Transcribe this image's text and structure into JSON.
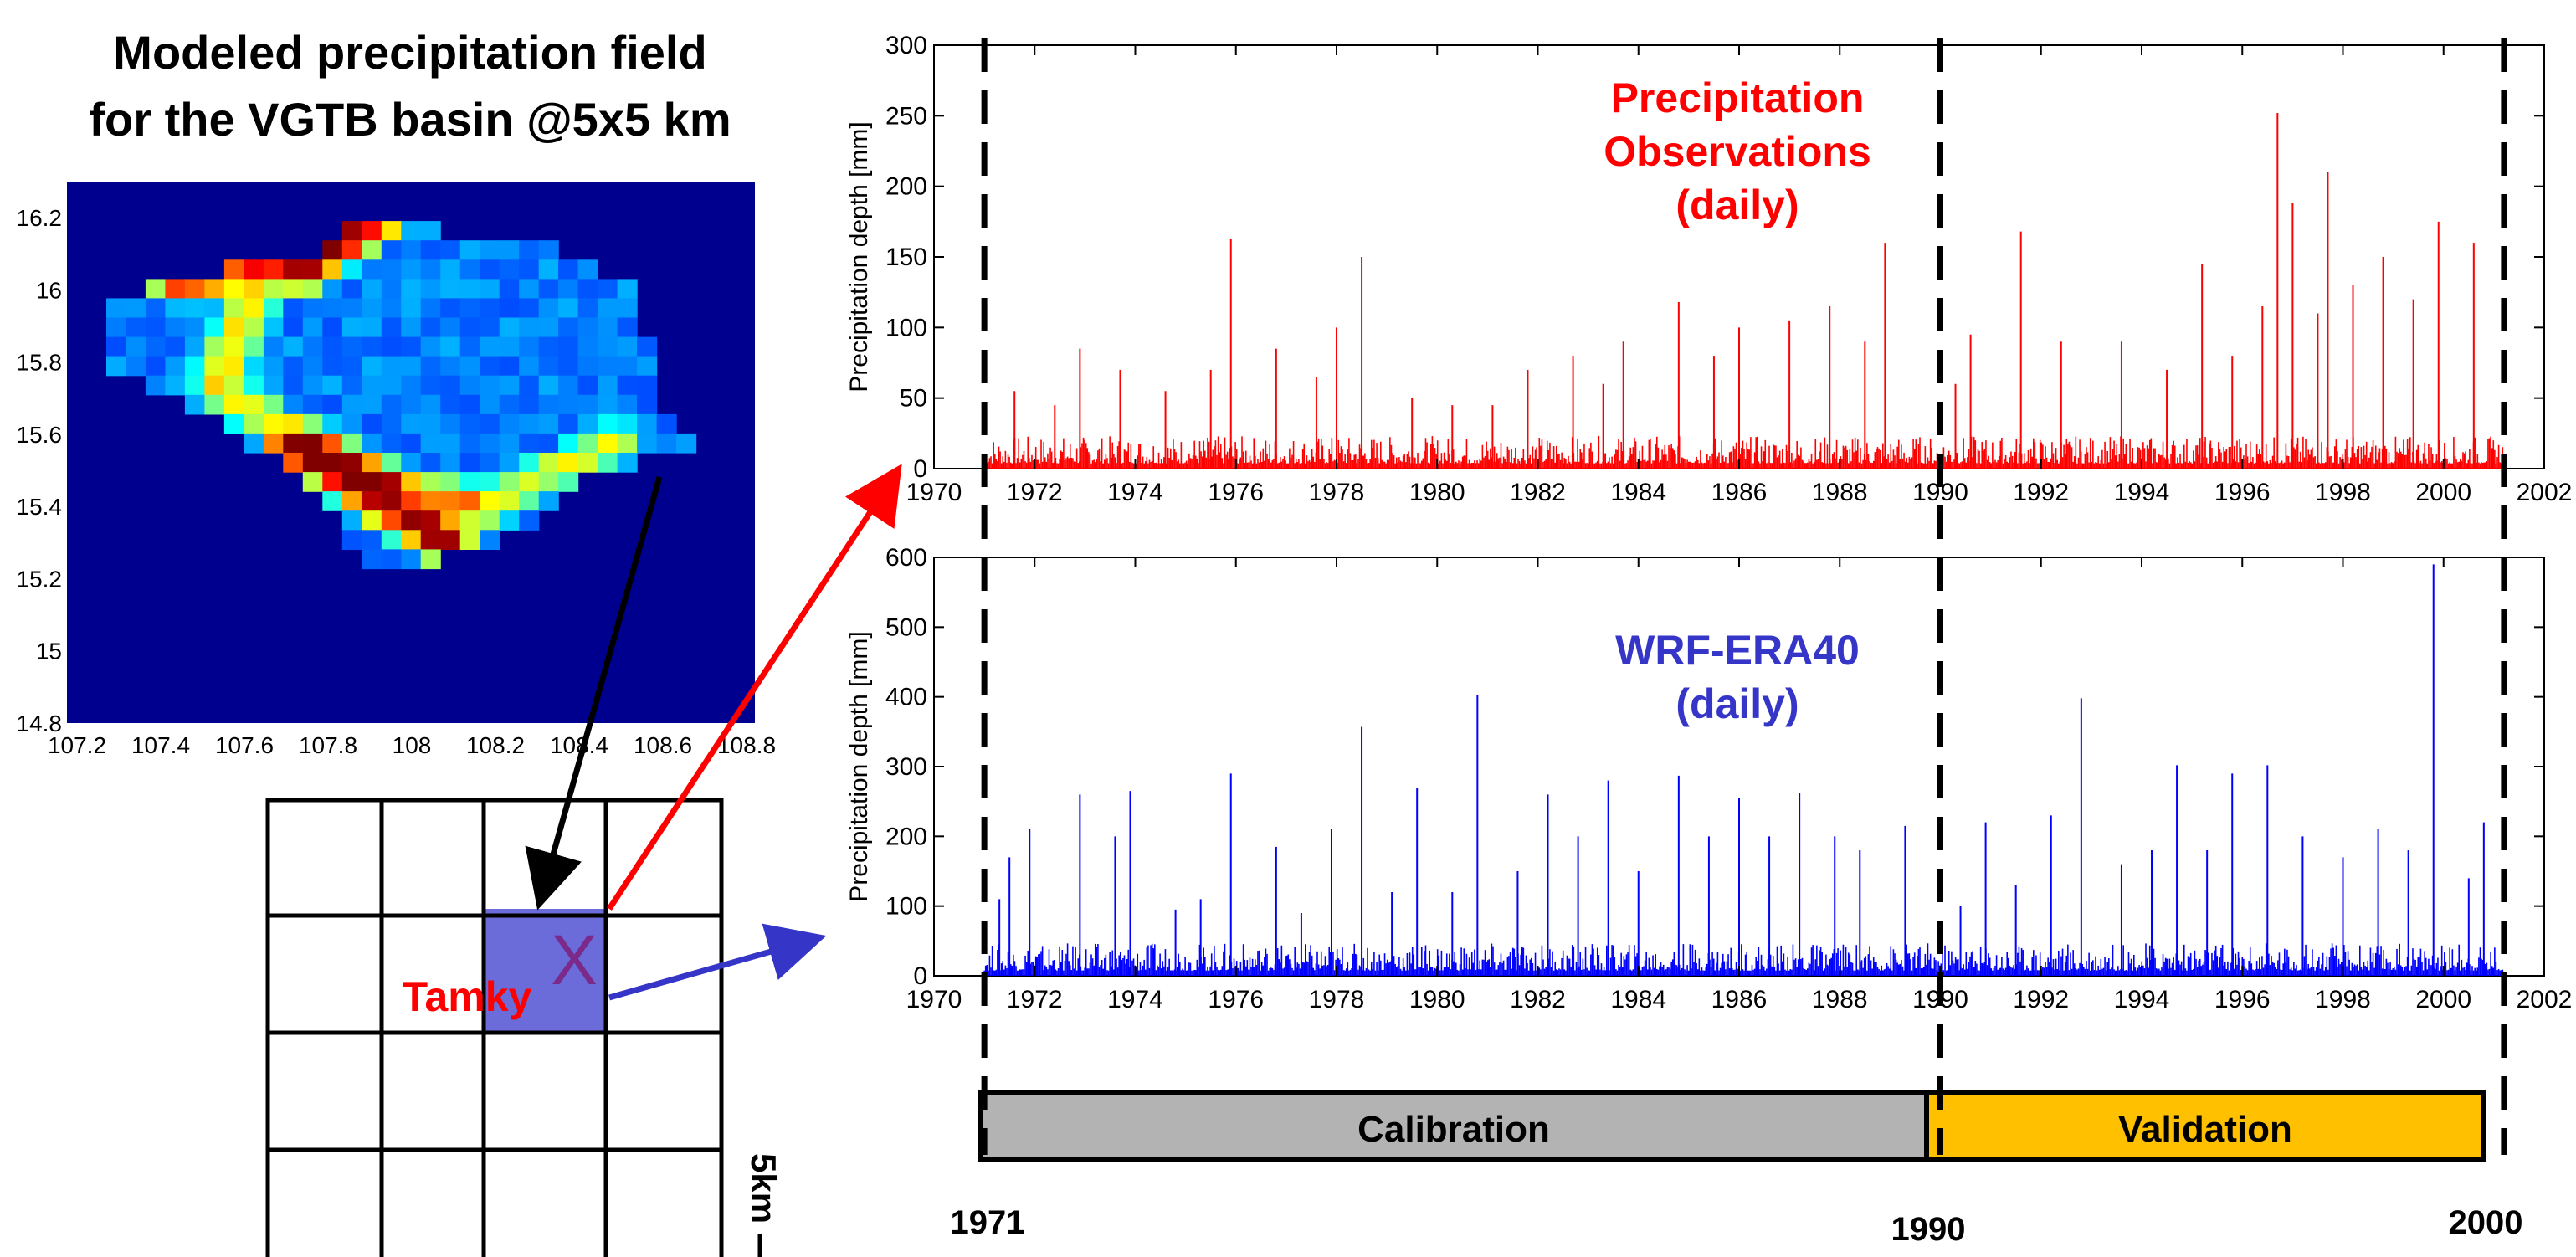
{
  "map": {
    "title_line1": "Modeled precipitation field",
    "title_line2": "for the  VGTB basin @5x5 km",
    "x_ticks": [
      "107.2",
      "107.4",
      "107.6",
      "107.8",
      "108",
      "108.2",
      "108.4",
      "108.6",
      "108.8"
    ],
    "y_ticks": [
      "16.2",
      "16",
      "15.8",
      "15.6",
      "15.4",
      "15.2",
      "15",
      "14.8"
    ],
    "colors": {
      "background": "#00008F",
      "low": "#0000FF",
      "mid": "#00FFFF",
      "high": "#FFFF00",
      "peak": "#FF0000",
      "max": "#800000"
    }
  },
  "grid": {
    "station_label": "Tamky",
    "marker": "X",
    "scale_label": "5km",
    "highlight_color": "#6B6BD9"
  },
  "chart_data": [
    {
      "type": "bar",
      "title": "Precipitation Observations (daily)",
      "title_lines": [
        "Precipitation",
        "Observations",
        "(daily)"
      ],
      "ylabel": "Precipitation depth [mm]",
      "xlim": [
        1970,
        2002
      ],
      "ylim": [
        0,
        300
      ],
      "x_ticks": [
        "1970",
        "1972",
        "1974",
        "1976",
        "1978",
        "1980",
        "1982",
        "1984",
        "1986",
        "1988",
        "1990",
        "1992",
        "1994",
        "1996",
        "1998",
        "2000",
        "2002"
      ],
      "y_ticks": [
        "0",
        "50",
        "100",
        "150",
        "200",
        "250",
        "300"
      ],
      "color": "#FF0000",
      "baseline": 15,
      "peaks": [
        {
          "x": 1971.6,
          "y": 55
        },
        {
          "x": 1972.4,
          "y": 45
        },
        {
          "x": 1972.9,
          "y": 85
        },
        {
          "x": 1973.7,
          "y": 70
        },
        {
          "x": 1974.6,
          "y": 55
        },
        {
          "x": 1975.5,
          "y": 70
        },
        {
          "x": 1975.9,
          "y": 163
        },
        {
          "x": 1976.8,
          "y": 85
        },
        {
          "x": 1977.6,
          "y": 65
        },
        {
          "x": 1978.0,
          "y": 100
        },
        {
          "x": 1978.5,
          "y": 150
        },
        {
          "x": 1979.5,
          "y": 50
        },
        {
          "x": 1980.3,
          "y": 45
        },
        {
          "x": 1981.1,
          "y": 45
        },
        {
          "x": 1981.8,
          "y": 70
        },
        {
          "x": 1982.7,
          "y": 80
        },
        {
          "x": 1983.3,
          "y": 60
        },
        {
          "x": 1983.7,
          "y": 90
        },
        {
          "x": 1984.8,
          "y": 118
        },
        {
          "x": 1985.5,
          "y": 80
        },
        {
          "x": 1986.0,
          "y": 100
        },
        {
          "x": 1987.0,
          "y": 105
        },
        {
          "x": 1987.8,
          "y": 115
        },
        {
          "x": 1988.5,
          "y": 90
        },
        {
          "x": 1988.9,
          "y": 160
        },
        {
          "x": 1990.3,
          "y": 60
        },
        {
          "x": 1990.6,
          "y": 95
        },
        {
          "x": 1991.6,
          "y": 168
        },
        {
          "x": 1992.4,
          "y": 90
        },
        {
          "x": 1993.6,
          "y": 90
        },
        {
          "x": 1994.5,
          "y": 70
        },
        {
          "x": 1995.2,
          "y": 145
        },
        {
          "x": 1995.8,
          "y": 80
        },
        {
          "x": 1996.4,
          "y": 115
        },
        {
          "x": 1996.7,
          "y": 252
        },
        {
          "x": 1997.0,
          "y": 188
        },
        {
          "x": 1997.5,
          "y": 110
        },
        {
          "x": 1997.7,
          "y": 210
        },
        {
          "x": 1998.2,
          "y": 130
        },
        {
          "x": 1998.8,
          "y": 150
        },
        {
          "x": 1999.4,
          "y": 120
        },
        {
          "x": 1999.9,
          "y": 175
        },
        {
          "x": 2000.6,
          "y": 160
        }
      ]
    },
    {
      "type": "bar",
      "title": "WRF-ERA40 (daily)",
      "title_lines": [
        "WRF-ERA40",
        "(daily)"
      ],
      "ylabel": "Precipitation depth [mm]",
      "xlim": [
        1970,
        2002
      ],
      "ylim": [
        0,
        600
      ],
      "x_ticks": [
        "1970",
        "1972",
        "1974",
        "1976",
        "1978",
        "1980",
        "1982",
        "1984",
        "1986",
        "1988",
        "1990",
        "1992",
        "1994",
        "1996",
        "1998",
        "2000",
        "2002"
      ],
      "y_ticks": [
        "0",
        "100",
        "200",
        "300",
        "400",
        "500",
        "600"
      ],
      "color": "#0000FF",
      "baseline": 30,
      "peaks": [
        {
          "x": 1971.3,
          "y": 110
        },
        {
          "x": 1971.5,
          "y": 170
        },
        {
          "x": 1971.9,
          "y": 210
        },
        {
          "x": 1972.9,
          "y": 260
        },
        {
          "x": 1973.6,
          "y": 200
        },
        {
          "x": 1973.9,
          "y": 265
        },
        {
          "x": 1974.8,
          "y": 95
        },
        {
          "x": 1975.3,
          "y": 110
        },
        {
          "x": 1975.9,
          "y": 290
        },
        {
          "x": 1976.8,
          "y": 185
        },
        {
          "x": 1977.3,
          "y": 90
        },
        {
          "x": 1977.9,
          "y": 210
        },
        {
          "x": 1978.5,
          "y": 357
        },
        {
          "x": 1979.1,
          "y": 120
        },
        {
          "x": 1979.6,
          "y": 270
        },
        {
          "x": 1980.3,
          "y": 120
        },
        {
          "x": 1980.8,
          "y": 402
        },
        {
          "x": 1981.6,
          "y": 150
        },
        {
          "x": 1982.2,
          "y": 260
        },
        {
          "x": 1982.8,
          "y": 200
        },
        {
          "x": 1983.4,
          "y": 280
        },
        {
          "x": 1984.0,
          "y": 150
        },
        {
          "x": 1984.8,
          "y": 287
        },
        {
          "x": 1985.4,
          "y": 200
        },
        {
          "x": 1986.0,
          "y": 255
        },
        {
          "x": 1986.6,
          "y": 200
        },
        {
          "x": 1987.2,
          "y": 262
        },
        {
          "x": 1987.9,
          "y": 200
        },
        {
          "x": 1988.4,
          "y": 180
        },
        {
          "x": 1989.3,
          "y": 215
        },
        {
          "x": 1990.4,
          "y": 100
        },
        {
          "x": 1990.9,
          "y": 220
        },
        {
          "x": 1991.5,
          "y": 130
        },
        {
          "x": 1992.2,
          "y": 230
        },
        {
          "x": 1992.8,
          "y": 398
        },
        {
          "x": 1993.6,
          "y": 160
        },
        {
          "x": 1994.2,
          "y": 180
        },
        {
          "x": 1994.7,
          "y": 302
        },
        {
          "x": 1995.3,
          "y": 180
        },
        {
          "x": 1995.8,
          "y": 290
        },
        {
          "x": 1996.5,
          "y": 302
        },
        {
          "x": 1997.2,
          "y": 200
        },
        {
          "x": 1998.0,
          "y": 170
        },
        {
          "x": 1998.7,
          "y": 210
        },
        {
          "x": 1999.3,
          "y": 180
        },
        {
          "x": 1999.8,
          "y": 590
        },
        {
          "x": 2000.5,
          "y": 140
        },
        {
          "x": 2000.8,
          "y": 220
        }
      ]
    }
  ],
  "periods": {
    "calibration_label": "Calibration",
    "validation_label": "Validation",
    "calibration_color": "#B3B3B3",
    "validation_color": "#FFC000",
    "year_labels": [
      "1971",
      "1990",
      "2000"
    ],
    "boundaries": [
      1971,
      1990,
      2001.2
    ]
  }
}
